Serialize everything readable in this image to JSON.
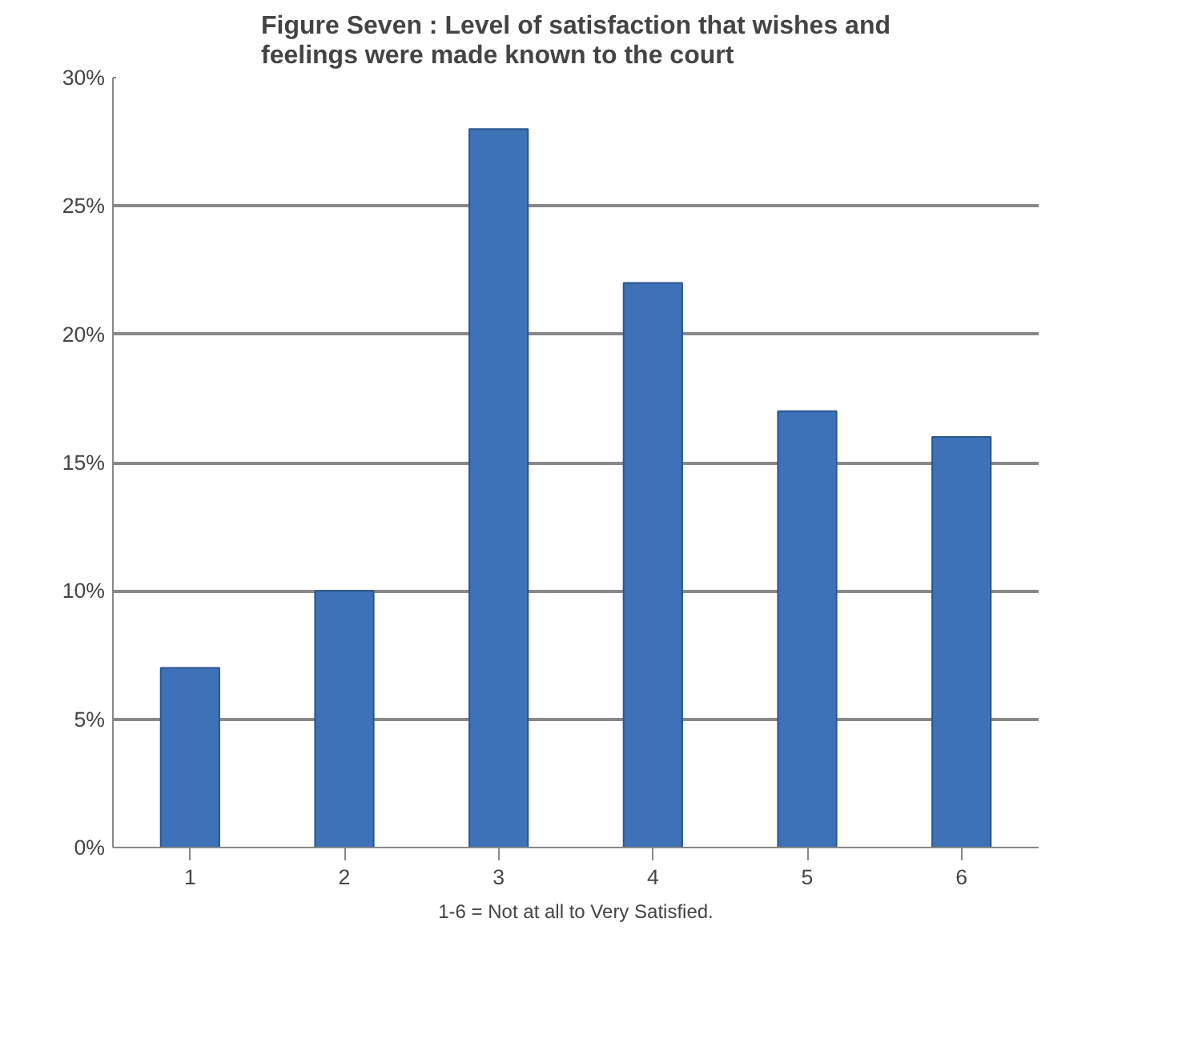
{
  "chart_data": {
    "type": "bar",
    "title": "Figure Seven : Level of satisfaction that wishes and feelings were made known to the court",
    "categories": [
      "1",
      "2",
      "3",
      "4",
      "5",
      "6"
    ],
    "values": [
      7,
      10,
      28,
      22,
      17,
      16
    ],
    "color": "#3d72b8",
    "ylim": [
      0,
      30
    ],
    "yticks": [
      {
        "value": 0,
        "label": "0%"
      },
      {
        "value": 5,
        "label": "5%"
      },
      {
        "value": 10,
        "label": "10%"
      },
      {
        "value": 15,
        "label": "15%"
      },
      {
        "value": 20,
        "label": "20%"
      },
      {
        "value": 25,
        "label": "25%"
      },
      {
        "value": 30,
        "label": "30%"
      }
    ],
    "grid": "y",
    "annotations": [
      "1-6 = Not at all to Very Satisfied."
    ]
  }
}
